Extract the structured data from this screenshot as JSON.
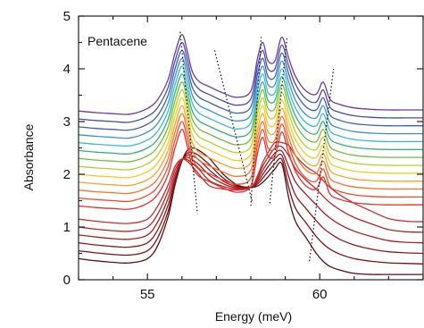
{
  "chart_data": {
    "type": "line",
    "annotation": "Pentacene",
    "xlabel": "Energy (meV)",
    "ylabel": "Absorbance",
    "xlim": [
      53,
      63
    ],
    "ylim": [
      0,
      5
    ],
    "x_ticks": [
      55,
      60
    ],
    "y_ticks": [
      0,
      1,
      2,
      3,
      4,
      5
    ],
    "grid": false,
    "legend": "none",
    "x": [
      53,
      53.5,
      54,
      54.5,
      55,
      55.3,
      55.6,
      55.8,
      56,
      56.15,
      56.3,
      56.5,
      56.8,
      57.2,
      57.6,
      58,
      58.2,
      58.35,
      58.5,
      58.7,
      58.9,
      59.1,
      59.3,
      59.6,
      59.9,
      60.1,
      60.3,
      60.6,
      61,
      61.5,
      62,
      62.5,
      63
    ],
    "series": [
      {
        "color": "#5c0f12",
        "values": [
          0.4,
          0.36,
          0.33,
          0.32,
          0.4,
          0.65,
          1.2,
          1.8,
          2.25,
          2.45,
          2.5,
          2.45,
          2.3,
          2.0,
          1.8,
          1.75,
          1.78,
          1.85,
          1.95,
          2.1,
          2.2,
          1.55,
          1.1,
          0.8,
          0.5,
          0.35,
          0.25,
          0.18,
          0.12,
          0.1,
          0.1,
          0.1,
          0.1
        ]
      },
      {
        "color": "#7a1318",
        "values": [
          0.55,
          0.51,
          0.48,
          0.47,
          0.55,
          0.8,
          1.3,
          1.85,
          2.25,
          2.4,
          2.42,
          2.35,
          2.18,
          1.93,
          1.78,
          1.75,
          1.82,
          1.93,
          2.05,
          2.2,
          2.28,
          1.75,
          1.35,
          1.08,
          0.82,
          0.68,
          0.58,
          0.48,
          0.4,
          0.35,
          0.32,
          0.31,
          0.3
        ]
      },
      {
        "color": "#93181d",
        "values": [
          0.7,
          0.66,
          0.63,
          0.62,
          0.7,
          0.95,
          1.42,
          1.92,
          2.26,
          2.36,
          2.35,
          2.27,
          2.08,
          1.87,
          1.76,
          1.75,
          1.86,
          2.0,
          2.14,
          2.3,
          2.36,
          1.95,
          1.6,
          1.35,
          1.12,
          0.98,
          0.88,
          0.76,
          0.66,
          0.58,
          0.53,
          0.51,
          0.5
        ]
      },
      {
        "color": "#a81e22",
        "values": [
          0.85,
          0.81,
          0.78,
          0.77,
          0.85,
          1.1,
          1.55,
          2.0,
          2.27,
          2.32,
          2.28,
          2.18,
          1.98,
          1.82,
          1.74,
          1.75,
          1.9,
          2.08,
          2.23,
          2.4,
          2.44,
          2.15,
          1.85,
          1.62,
          1.42,
          1.28,
          1.17,
          1.04,
          0.92,
          0.82,
          0.74,
          0.71,
          0.7
        ]
      },
      {
        "color": "#bb2426",
        "values": [
          1.0,
          0.96,
          0.93,
          0.92,
          1.0,
          1.25,
          1.68,
          2.08,
          2.28,
          2.28,
          2.21,
          2.09,
          1.88,
          1.77,
          1.72,
          1.75,
          1.94,
          2.16,
          2.32,
          2.5,
          2.52,
          2.35,
          2.1,
          1.89,
          1.72,
          1.58,
          1.46,
          1.32,
          1.18,
          1.06,
          0.95,
          0.91,
          0.9
        ]
      },
      {
        "color": "#cc2b2b",
        "values": [
          1.15,
          1.11,
          1.08,
          1.07,
          1.15,
          1.4,
          1.8,
          2.15,
          2.29,
          2.25,
          2.15,
          2.0,
          1.78,
          1.72,
          1.7,
          1.75,
          1.98,
          2.23,
          2.41,
          2.6,
          2.6,
          2.55,
          2.35,
          2.15,
          2.02,
          1.88,
          1.75,
          1.6,
          1.45,
          1.3,
          1.16,
          1.11,
          1.1
        ]
      },
      {
        "color": "#e0302e",
        "values": [
          1.4,
          1.37,
          1.35,
          1.34,
          1.45,
          1.62,
          2.0,
          2.5,
          2.85,
          2.55,
          2.15,
          1.96,
          1.86,
          1.74,
          1.66,
          1.78,
          2.42,
          2.7,
          2.35,
          2.35,
          2.8,
          2.4,
          2.05,
          1.78,
          1.72,
          1.95,
          1.62,
          1.52,
          1.46,
          1.43,
          1.42,
          1.42,
          1.42
        ]
      },
      {
        "color": "#f04a2a",
        "values": [
          1.55,
          1.52,
          1.5,
          1.49,
          1.6,
          1.77,
          2.15,
          2.65,
          3.0,
          2.7,
          2.3,
          2.11,
          2.01,
          1.89,
          1.81,
          1.93,
          2.57,
          2.85,
          2.5,
          2.5,
          2.95,
          2.55,
          2.2,
          1.93,
          1.87,
          2.1,
          1.77,
          1.67,
          1.61,
          1.58,
          1.57,
          1.57,
          1.57
        ]
      },
      {
        "color": "#f5732a",
        "values": [
          1.7,
          1.67,
          1.65,
          1.64,
          1.75,
          1.92,
          2.3,
          2.8,
          3.15,
          2.85,
          2.45,
          2.26,
          2.16,
          2.04,
          1.96,
          2.08,
          2.72,
          3.0,
          2.65,
          2.65,
          3.1,
          2.7,
          2.35,
          2.08,
          2.02,
          2.25,
          1.92,
          1.82,
          1.76,
          1.73,
          1.72,
          1.72,
          1.72
        ]
      },
      {
        "color": "#f7a12c",
        "values": [
          1.85,
          1.82,
          1.8,
          1.79,
          1.9,
          2.07,
          2.45,
          2.95,
          3.3,
          3.0,
          2.6,
          2.41,
          2.31,
          2.19,
          2.11,
          2.23,
          2.87,
          3.15,
          2.8,
          2.8,
          3.25,
          2.85,
          2.5,
          2.23,
          2.17,
          2.4,
          2.07,
          1.97,
          1.91,
          1.88,
          1.87,
          1.87,
          1.87
        ]
      },
      {
        "color": "#f2cb27",
        "values": [
          2.0,
          1.97,
          1.95,
          1.94,
          2.05,
          2.22,
          2.6,
          3.1,
          3.45,
          3.15,
          2.75,
          2.56,
          2.46,
          2.34,
          2.26,
          2.38,
          3.02,
          3.3,
          2.95,
          2.95,
          3.4,
          3.0,
          2.65,
          2.38,
          2.32,
          2.55,
          2.22,
          2.12,
          2.06,
          2.03,
          2.02,
          2.02,
          2.02
        ]
      },
      {
        "color": "#b5cf2b",
        "values": [
          2.15,
          2.12,
          2.1,
          2.09,
          2.2,
          2.37,
          2.75,
          3.25,
          3.6,
          3.3,
          2.9,
          2.71,
          2.61,
          2.49,
          2.41,
          2.53,
          3.17,
          3.45,
          3.1,
          3.1,
          3.55,
          3.15,
          2.8,
          2.53,
          2.47,
          2.7,
          2.37,
          2.27,
          2.21,
          2.18,
          2.17,
          2.17,
          2.17
        ]
      },
      {
        "color": "#6fbd3a",
        "values": [
          2.3,
          2.27,
          2.25,
          2.24,
          2.35,
          2.52,
          2.9,
          3.4,
          3.75,
          3.45,
          3.05,
          2.86,
          2.76,
          2.64,
          2.56,
          2.68,
          3.32,
          3.6,
          3.25,
          3.25,
          3.7,
          3.3,
          2.95,
          2.68,
          2.62,
          2.85,
          2.52,
          2.42,
          2.36,
          2.33,
          2.32,
          2.32,
          2.32
        ]
      },
      {
        "color": "#36b07a",
        "values": [
          2.45,
          2.42,
          2.4,
          2.39,
          2.5,
          2.67,
          3.05,
          3.55,
          3.9,
          3.6,
          3.2,
          3.01,
          2.91,
          2.79,
          2.71,
          2.83,
          3.47,
          3.75,
          3.4,
          3.4,
          3.85,
          3.45,
          3.1,
          2.83,
          2.77,
          3.0,
          2.67,
          2.57,
          2.51,
          2.48,
          2.47,
          2.47,
          2.47
        ]
      },
      {
        "color": "#3cb8d8",
        "values": [
          2.6,
          2.57,
          2.55,
          2.54,
          2.65,
          2.82,
          3.2,
          3.7,
          4.05,
          3.75,
          3.35,
          3.16,
          3.06,
          2.94,
          2.86,
          2.98,
          3.62,
          3.9,
          3.55,
          3.55,
          4.0,
          3.6,
          3.25,
          2.98,
          2.92,
          3.15,
          2.82,
          2.72,
          2.66,
          2.63,
          2.62,
          2.62,
          2.62
        ]
      },
      {
        "color": "#3a8ed6",
        "values": [
          2.75,
          2.72,
          2.7,
          2.69,
          2.8,
          2.97,
          3.35,
          3.85,
          4.2,
          3.9,
          3.5,
          3.31,
          3.21,
          3.09,
          3.01,
          3.13,
          3.77,
          4.05,
          3.7,
          3.7,
          4.15,
          3.75,
          3.4,
          3.13,
          3.07,
          3.3,
          2.97,
          2.87,
          2.81,
          2.78,
          2.77,
          2.77,
          2.77
        ]
      },
      {
        "color": "#3b5fb5",
        "values": [
          2.9,
          2.87,
          2.85,
          2.84,
          2.95,
          3.12,
          3.5,
          4.0,
          4.35,
          4.05,
          3.65,
          3.46,
          3.36,
          3.24,
          3.16,
          3.28,
          3.92,
          4.2,
          3.85,
          3.85,
          4.3,
          3.9,
          3.55,
          3.28,
          3.22,
          3.45,
          3.12,
          3.02,
          2.96,
          2.93,
          2.92,
          2.92,
          2.92
        ]
      },
      {
        "color": "#4a4aa8",
        "values": [
          3.05,
          3.02,
          3.0,
          2.99,
          3.1,
          3.27,
          3.65,
          4.15,
          4.5,
          4.2,
          3.8,
          3.61,
          3.51,
          3.39,
          3.31,
          3.43,
          4.07,
          4.35,
          4.0,
          4.0,
          4.45,
          4.05,
          3.7,
          3.43,
          3.37,
          3.6,
          3.27,
          3.17,
          3.11,
          3.08,
          3.07,
          3.07,
          3.07
        ]
      },
      {
        "color": "#6a3aa0",
        "values": [
          3.2,
          3.17,
          3.15,
          3.14,
          3.25,
          3.42,
          3.8,
          4.3,
          4.65,
          4.35,
          3.95,
          3.76,
          3.66,
          3.54,
          3.46,
          3.58,
          4.22,
          4.5,
          4.15,
          4.15,
          4.6,
          4.2,
          3.85,
          3.58,
          3.52,
          3.75,
          3.42,
          3.32,
          3.26,
          3.23,
          3.22,
          3.22,
          3.22
        ]
      }
    ],
    "guide_lines": [
      {
        "x": [
          55.95,
          56.45
        ],
        "y": [
          4.7,
          1.25
        ]
      },
      {
        "x": [
          56.95,
          58.05
        ],
        "y": [
          4.35,
          1.45
        ]
      },
      {
        "x": [
          58.0,
          58.3
        ],
        "y": [
          1.4,
          4.6
        ]
      },
      {
        "x": [
          58.55,
          59.05
        ],
        "y": [
          1.45,
          4.6
        ]
      },
      {
        "x": [
          59.7,
          60.4
        ],
        "y": [
          0.35,
          4.0
        ]
      }
    ]
  }
}
